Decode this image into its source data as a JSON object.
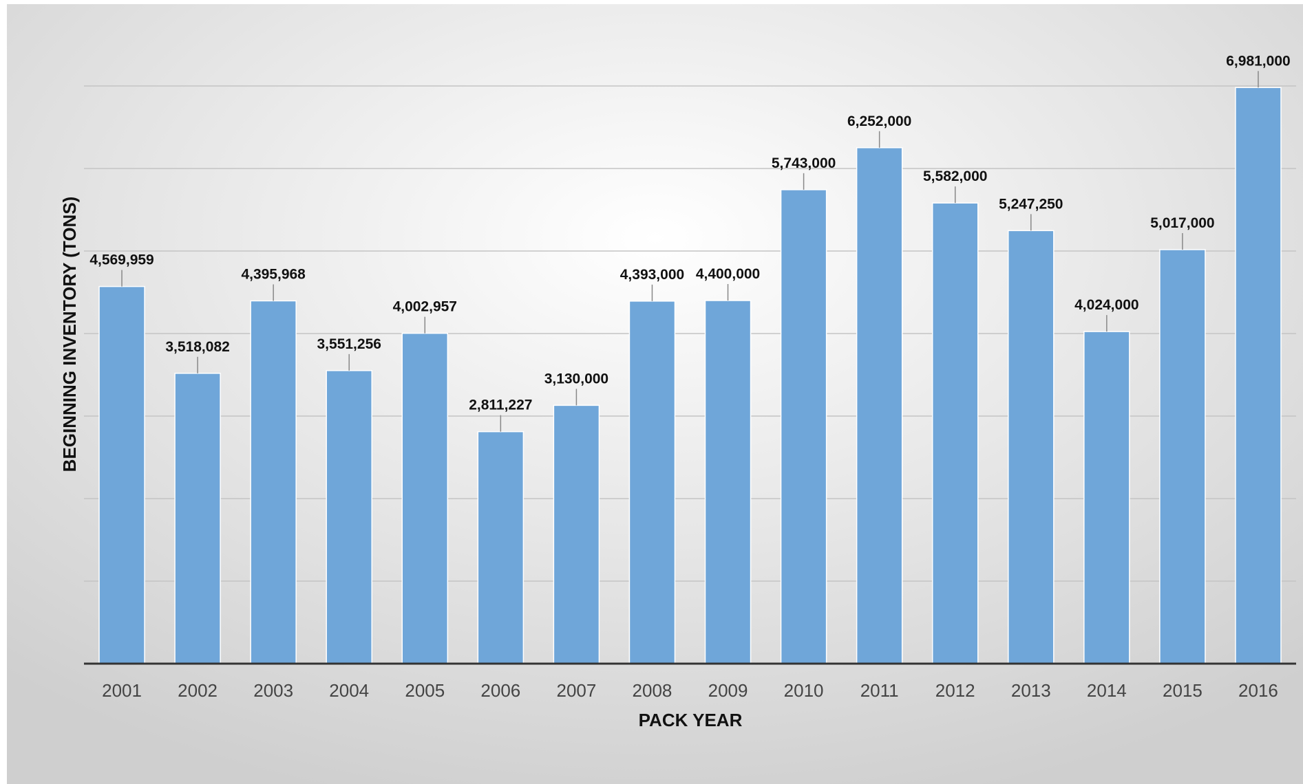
{
  "chart_data": {
    "type": "bar",
    "title": "",
    "xlabel": "PACK YEAR",
    "ylabel": "BEGINNING INVENTORY (TONS)",
    "categories": [
      "2001",
      "2002",
      "2003",
      "2004",
      "2005",
      "2006",
      "2007",
      "2008",
      "2009",
      "2010",
      "2011",
      "2012",
      "2013",
      "2014",
      "2015",
      "2016"
    ],
    "values": [
      4569959,
      3518082,
      4395968,
      3551256,
      4002957,
      2811227,
      3130000,
      4393000,
      4400000,
      5743000,
      6252000,
      5582000,
      5247250,
      4024000,
      5017000,
      6981000
    ],
    "value_labels": [
      "4,569,959",
      "3,518,082",
      "4,395,968",
      "3,551,256",
      "4,002,957",
      "2,811,227",
      "3,130,000",
      "4,393,000",
      "4,400,000",
      "5,743,000",
      "6,252,000",
      "5,582,000",
      "5,247,250",
      "4,024,000",
      "5,017,000",
      "6,981,000"
    ],
    "ylim": [
      0,
      7000000
    ],
    "y_gridline_step": 1000000,
    "y_tick_labels_visible": false,
    "grid": true,
    "legend": "none",
    "colors": {
      "bar": "#6fa6d9",
      "bar_edge": "#ffffff",
      "grid": "#c4c4c4",
      "axis": "#333333",
      "background_center": "#ffffff",
      "background_edge": "#cfcfcf"
    }
  }
}
